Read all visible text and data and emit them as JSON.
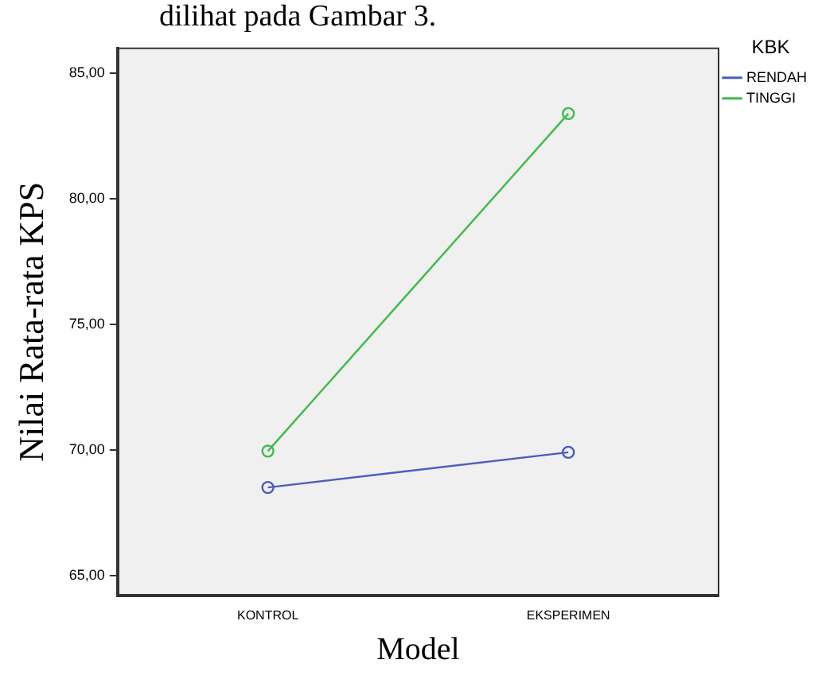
{
  "chart_data": {
    "type": "line",
    "xlabel": "Model",
    "ylabel": "Nilai Rata-rata KPS",
    "legend_title": "KBK",
    "annotations": [
      "dilihat pada Gambar 3."
    ],
    "categories": [
      "KONTROL",
      "EKSPERIMEN"
    ],
    "series": [
      {
        "name": "RENDAH",
        "color": "#4a5cbf",
        "values": [
          68.5,
          69.9
        ]
      },
      {
        "name": "TINGGI",
        "color": "#3dbb48",
        "values": [
          69.95,
          83.4
        ]
      }
    ],
    "ylim": [
      64.2,
      86
    ],
    "yticks": [
      {
        "value": 65,
        "label": "65,00"
      },
      {
        "value": 70,
        "label": "70,00"
      },
      {
        "value": 75,
        "label": "75,00"
      },
      {
        "value": 80,
        "label": "80,00"
      },
      {
        "value": 85,
        "label": "85,00"
      }
    ],
    "grid": false,
    "legend": "right",
    "marker": "circle",
    "line_style": "solid"
  }
}
